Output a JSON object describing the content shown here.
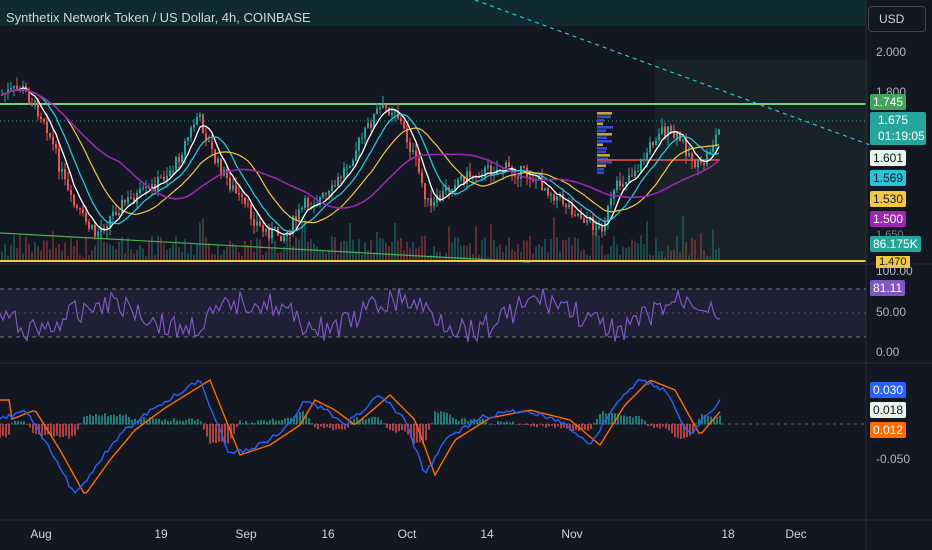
{
  "header": {
    "symbol_title": "Synthetix Network Token / US Dollar, 4h, COINBASE",
    "currency_button": "USD"
  },
  "price_axis": {
    "ticks": [
      "2.000",
      "1.800"
    ],
    "labels": {
      "resistance": "1.745",
      "last_price": "1.675",
      "countdown": "01:19:05",
      "ma_white": "1.601",
      "ma_cyan": "1.569",
      "ma_yellow": "1.530",
      "ma_purple": "1.500",
      "volume": "86.175K",
      "support": "1.470",
      "hidden": "1.650"
    }
  },
  "rsi_axis": {
    "ticks": [
      "100.00",
      "50.00",
      "0.00"
    ],
    "value": "81.11"
  },
  "macd_axis": {
    "tick": "-0.050",
    "macd": "0.030",
    "hist": "0.018",
    "signal": "0.012"
  },
  "time_axis": {
    "labels": [
      "Aug",
      "19",
      "Sep",
      "16",
      "Oct",
      "14",
      "Nov",
      "18",
      "Dec"
    ]
  },
  "colors": {
    "background": "#131722",
    "up": "#26a69a",
    "down": "#ef5350",
    "resistance": "#6fcf7b",
    "support": "#f5c842",
    "ma_white": "#ffffff",
    "ma_cyan": "#26c6da",
    "ma_yellow": "#f5c842",
    "ma_purple": "#9c27b0",
    "rsi": "#7e57c2",
    "macd_blue": "#2962ff",
    "macd_orange": "#ff6d00"
  }
}
